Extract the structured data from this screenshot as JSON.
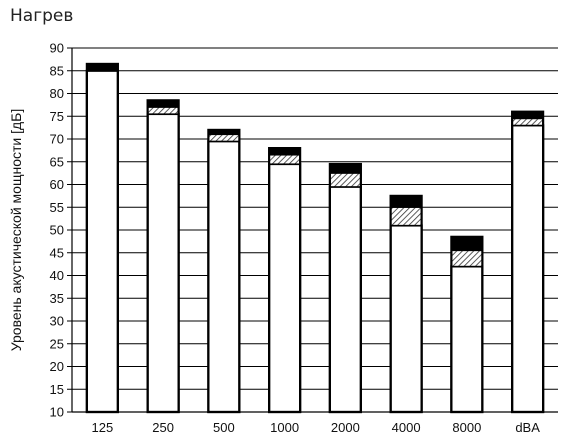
{
  "chart_data": {
    "type": "bar",
    "title": "Нагрев",
    "xlabel": "",
    "ylabel": "Уровень акустической мощности [дБ]",
    "ylim": [
      10,
      90
    ],
    "ytick_step": 5,
    "grid": "horizontal",
    "categories": [
      "125",
      "250",
      "500",
      "1000",
      "2000",
      "4000",
      "8000",
      "dBA"
    ],
    "series": [
      {
        "values": [
          85,
          75.5,
          69.5,
          64.5,
          59.5,
          51,
          42,
          73
        ]
      },
      {
        "values": [
          85,
          77,
          71,
          66.5,
          62.5,
          55,
          45.5,
          74.5
        ]
      },
      {
        "values": [
          86.5,
          78.5,
          72,
          68,
          64.5,
          57.5,
          48.5,
          76
        ]
      }
    ],
    "colors": {
      "base": "#ffffff",
      "hatch": "#333333",
      "top": "#000000",
      "grid": "#000000"
    }
  }
}
